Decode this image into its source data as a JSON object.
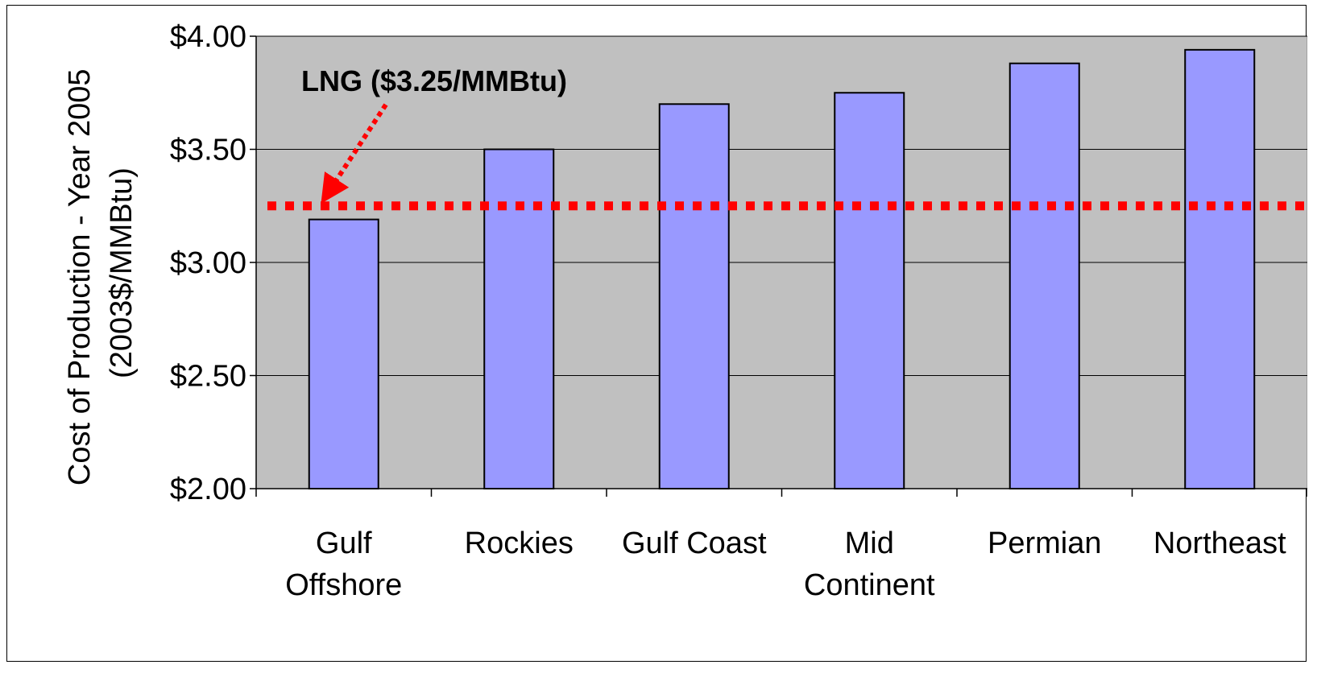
{
  "chart_data": {
    "type": "bar",
    "categories": [
      "Gulf Offshore",
      "Rockies",
      "Gulf Coast",
      "Mid Continent",
      "Permian",
      "Northeast"
    ],
    "category_lines": [
      [
        "Gulf",
        "Offshore"
      ],
      [
        "Rockies"
      ],
      [
        "Gulf Coast"
      ],
      [
        "Mid",
        "Continent"
      ],
      [
        "Permian"
      ],
      [
        "Northeast"
      ]
    ],
    "values": [
      3.19,
      3.5,
      3.7,
      3.75,
      3.88,
      3.94
    ],
    "ylabel_lines": [
      "Cost of Production - Year 2005",
      "(2003$/MMBtu)"
    ],
    "ylim": [
      2.0,
      4.0
    ],
    "yticks": [
      2.0,
      2.5,
      3.0,
      3.5,
      4.0
    ],
    "ytick_labels": [
      "$2.00",
      "$2.50",
      "$3.00",
      "$3.50",
      "$4.00"
    ],
    "grid": true,
    "reference_line": {
      "value": 3.25,
      "label": "LNG ($3.25/MMBtu)",
      "color": "#ff0000"
    },
    "colors": {
      "bar": "#9999ff",
      "plot_background": "#c0c0c0",
      "bar_border": "#000000"
    }
  }
}
